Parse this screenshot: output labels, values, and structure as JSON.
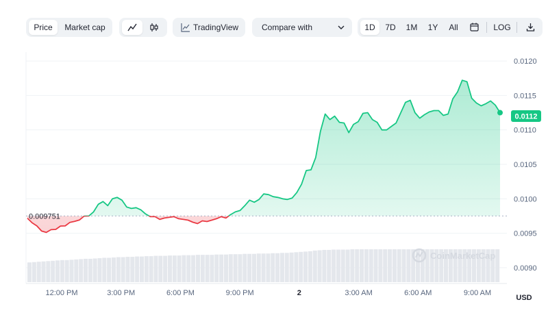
{
  "toolbar": {
    "view_tabs": [
      {
        "label": "Price",
        "active": true
      },
      {
        "label": "Market cap",
        "active": false
      }
    ],
    "chart_type_icons": [
      "line-chart-icon",
      "candlestick-icon"
    ],
    "tradingview_label": "TradingView",
    "compare_label": "Compare with",
    "ranges": [
      {
        "label": "1D",
        "active": true
      },
      {
        "label": "7D",
        "active": false
      },
      {
        "label": "1M",
        "active": false
      },
      {
        "label": "1Y",
        "active": false
      },
      {
        "label": "All",
        "active": false
      }
    ],
    "log_label": "LOG"
  },
  "watermark": "CoinMarketCap",
  "currency": "USD",
  "colors": {
    "up": "#16c784",
    "down": "#ea3943",
    "current_badge": "#16c784"
  },
  "chart_data": {
    "type": "line",
    "y_ticks": [
      "0.0120",
      "0.0115",
      "0.0110",
      "0.0105",
      "0.0100",
      "0.0095",
      "0.0090"
    ],
    "ylim": [
      0.00877,
      0.01213
    ],
    "x_ticks": [
      "12:00 PM",
      "3:00 PM",
      "6:00 PM",
      "9:00 PM",
      "2",
      "3:00 AM",
      "6:00 AM",
      "9:00 AM"
    ],
    "reference_price": 0.009751,
    "reference_label": "0.009751",
    "current_price_label": "0.0112",
    "grid": true,
    "series": [
      {
        "values": [
          0.009718,
          0.009651,
          0.009606,
          0.009531,
          0.009512,
          0.009551,
          0.009555,
          0.009604,
          0.009606,
          0.009658,
          0.009672,
          0.009692,
          0.009748,
          0.00975,
          0.00981,
          0.00992,
          0.00996,
          0.0099,
          0.01,
          0.01002,
          0.00998,
          0.00988,
          0.00986,
          0.00987,
          0.00984,
          0.00978,
          0.00974,
          0.00974,
          0.0097,
          0.00972,
          0.00973,
          0.00974,
          0.00971,
          0.0097,
          0.00969,
          0.00966,
          0.00964,
          0.00968,
          0.00967,
          0.00969,
          0.00971,
          0.00974,
          0.00972,
          0.00977,
          0.00981,
          0.00983,
          0.0099,
          0.00998,
          0.00995,
          0.00999,
          0.01007,
          0.01006,
          0.01003,
          0.01002,
          0.01,
          0.00999,
          0.01001,
          0.01009,
          0.01021,
          0.01041,
          0.01042,
          0.0106,
          0.01098,
          0.01123,
          0.01115,
          0.0112,
          0.01111,
          0.0111,
          0.01096,
          0.01108,
          0.01112,
          0.01124,
          0.01125,
          0.01115,
          0.01111,
          0.011,
          0.011,
          0.01105,
          0.0111,
          0.01125,
          0.0114,
          0.01143,
          0.01125,
          0.01117,
          0.01122,
          0.01126,
          0.01128,
          0.01128,
          0.01121,
          0.01123,
          0.01145,
          0.01155,
          0.01172,
          0.0117,
          0.01146,
          0.01139,
          0.01135,
          0.01138,
          0.01142,
          0.01136,
          0.01125
        ]
      }
    ],
    "volume": [
      0.6,
      0.61,
      0.62,
      0.63,
      0.64,
      0.65,
      0.66,
      0.67,
      0.67,
      0.68,
      0.69,
      0.7,
      0.71,
      0.71,
      0.72,
      0.73,
      0.74,
      0.74,
      0.75,
      0.76,
      0.76,
      0.77,
      0.77,
      0.78,
      0.78,
      0.79,
      0.79,
      0.8,
      0.8,
      0.8,
      0.81,
      0.81,
      0.81,
      0.82,
      0.82,
      0.82,
      0.83,
      0.83,
      0.83,
      0.83,
      0.84,
      0.84,
      0.84,
      0.85,
      0.85,
      0.85,
      0.86,
      0.86,
      0.86,
      0.87,
      0.87,
      0.87,
      0.88,
      0.88,
      0.89,
      0.89,
      0.9,
      0.91,
      0.92,
      0.93,
      0.94,
      0.96,
      0.97,
      0.98,
      0.98,
      0.99,
      0.99,
      0.99,
      0.99,
      1.0,
      1.0,
      1.0,
      1.0,
      1.0,
      1.0,
      1.0,
      1.0,
      1.0,
      1.0,
      1.0,
      1.0,
      1.0,
      1.0,
      1.0,
      1.0,
      1.0,
      1.0,
      1.0,
      1.0,
      1.0,
      1.0,
      1.0,
      1.0,
      1.0,
      1.0,
      1.0,
      1.0,
      1.0,
      1.0,
      1.0,
      1.0
    ]
  }
}
